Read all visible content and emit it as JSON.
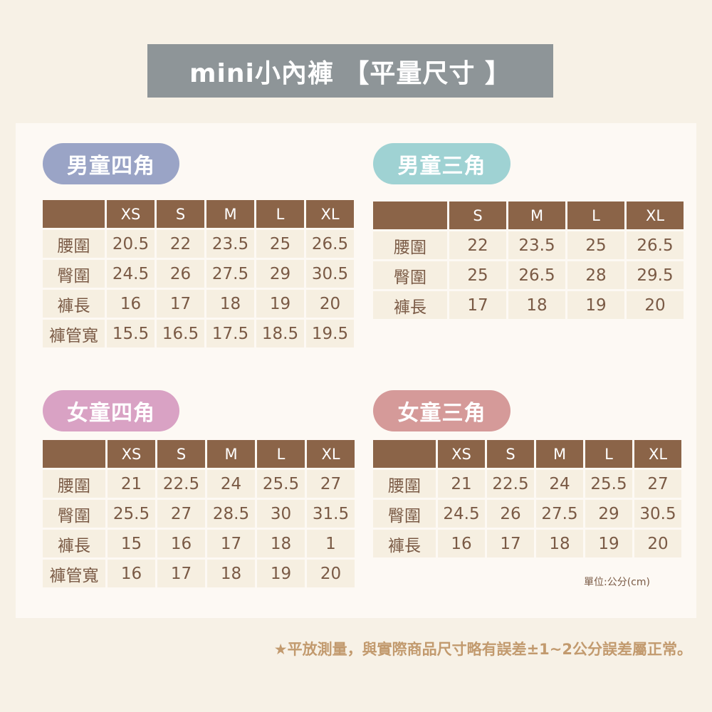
{
  "title": "mini小內褲 【平量尺寸 】",
  "colors": {
    "header": "#8b6448",
    "cell": "#f6efe1",
    "title_bg": "#8e9598"
  },
  "tables": [
    {
      "label": "男童四角",
      "color": "#9aa4c6",
      "sizes": [
        "XS",
        "S",
        "M",
        "L",
        "XL"
      ],
      "rows": [
        {
          "name": "腰圍",
          "values": [
            "20.5",
            "22",
            "23.5",
            "25",
            "26.5"
          ]
        },
        {
          "name": "臀圍",
          "values": [
            "24.5",
            "26",
            "27.5",
            "29",
            "30.5"
          ]
        },
        {
          "name": "褲長",
          "values": [
            "16",
            "17",
            "18",
            "19",
            "20"
          ]
        },
        {
          "name": "褲管寬",
          "values": [
            "15.5",
            "16.5",
            "17.5",
            "18.5",
            "19.5"
          ]
        }
      ]
    },
    {
      "label": "男童三角",
      "color": "#9fd2d3",
      "sizes": [
        "S",
        "M",
        "L",
        "XL"
      ],
      "rows": [
        {
          "name": "腰圍",
          "values": [
            "22",
            "23.5",
            "25",
            "26.5"
          ]
        },
        {
          "name": "臀圍",
          "values": [
            "25",
            "26.5",
            "28",
            "29.5"
          ]
        },
        {
          "name": "褲長",
          "values": [
            "17",
            "18",
            "19",
            "20"
          ]
        }
      ]
    },
    {
      "label": "女童四角",
      "color": "#d9a2c4",
      "sizes": [
        "XS",
        "S",
        "M",
        "L",
        "XL"
      ],
      "rows": [
        {
          "name": "腰圍",
          "values": [
            "21",
            "22.5",
            "24",
            "25.5",
            "27"
          ]
        },
        {
          "name": "臀圍",
          "values": [
            "25.5",
            "27",
            "28.5",
            "30",
            "31.5"
          ]
        },
        {
          "name": "褲長",
          "values": [
            "15",
            "16",
            "17",
            "18",
            "1"
          ]
        },
        {
          "name": "褲管寬",
          "values": [
            "16",
            "17",
            "18",
            "19",
            "20"
          ]
        }
      ]
    },
    {
      "label": "女童三角",
      "color": "#d59a99",
      "sizes": [
        "XS",
        "S",
        "M",
        "L",
        "XL"
      ],
      "rows": [
        {
          "name": "腰圍",
          "values": [
            "21",
            "22.5",
            "24",
            "25.5",
            "27"
          ]
        },
        {
          "name": "臀圍",
          "values": [
            "24.5",
            "26",
            "27.5",
            "29",
            "30.5"
          ]
        },
        {
          "name": "褲長",
          "values": [
            "16",
            "17",
            "18",
            "19",
            "20"
          ]
        }
      ]
    }
  ],
  "unit": "單位:公分(cm)",
  "note": "★平放測量，與實際商品尺寸略有誤差±1~2公分誤差屬正常。"
}
